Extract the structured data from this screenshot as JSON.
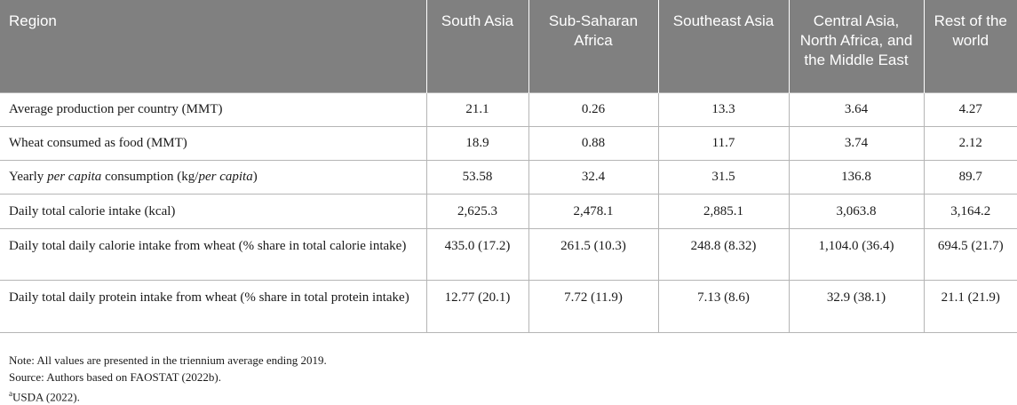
{
  "header": [
    "Region",
    "South Asia",
    "Sub-Saharan Africa",
    "Southeast Asia",
    "Central Asia, North Africa, and the Middle East",
    "Rest of the world"
  ],
  "rows": [
    {
      "label": "Average production per country (MMT)",
      "values": [
        "21.1",
        "0.26",
        "13.3",
        "3.64",
        "4.27"
      ]
    },
    {
      "label": "Wheat consumed as food (MMT)",
      "values": [
        "18.9",
        "0.88",
        "11.7",
        "3.74",
        "2.12"
      ]
    },
    {
      "label_pre": "Yearly ",
      "label_em1": "per capita",
      "label_mid": " consumption (kg/",
      "label_em2": "per capita",
      "label_post": ")",
      "values": [
        "53.58",
        "32.4",
        "31.5",
        "136.8",
        "89.7"
      ]
    },
    {
      "label": "Daily total calorie intake (kcal)",
      "values": [
        "2,625.3",
        "2,478.1",
        "2,885.1",
        "3,063.8",
        "3,164.2"
      ]
    },
    {
      "label": "Daily total daily calorie intake from wheat (% share in total calorie intake)",
      "values": [
        "435.0 (17.2)",
        "261.5 (10.3)",
        "248.8 (8.32)",
        "1,104.0 (36.4)",
        "694.5 (21.7)"
      ]
    },
    {
      "label": "Daily total daily protein intake from wheat (% share in total protein intake)",
      "values": [
        "12.77 (20.1)",
        "7.72 (11.9)",
        "7.13 (8.6)",
        "32.9 (38.1)",
        "21.1 (21.9)"
      ]
    }
  ],
  "notes": {
    "note": "Note: All values are presented in the triennium average ending 2019.",
    "source": "Source: Authors based on FAOSTAT (2022b).",
    "usda_mark": "a",
    "usda": "USDA (2022)."
  }
}
